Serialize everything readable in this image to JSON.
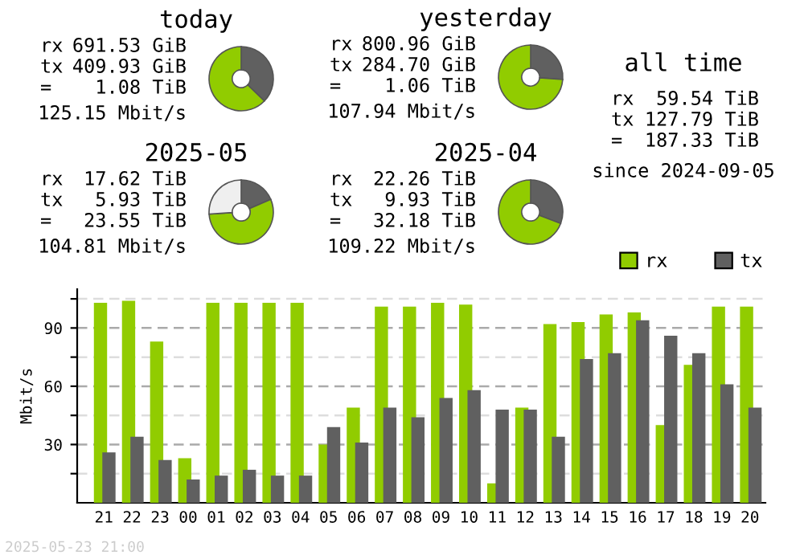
{
  "chart_data": [
    {
      "type": "donut",
      "title": "today",
      "categories": [
        null,
        null
      ],
      "values": [
        37.2,
        62.8
      ],
      "colors": [
        "#606060",
        "#91cc00"
      ],
      "annotations": [
        "rx",
        "691.53 GiB",
        "tx",
        "409.93 GiB",
        "=",
        "1.08 TiB",
        "125.15 Mbit/s"
      ]
    },
    {
      "type": "donut",
      "title": "yesterday",
      "categories": [
        null,
        null
      ],
      "values": [
        26.2,
        73.8
      ],
      "colors": [
        "#606060",
        "#91cc00"
      ],
      "annotations": [
        "rx",
        "800.96 GiB",
        "tx",
        "284.70 GiB",
        "=",
        "1.06 TiB",
        "107.94 Mbit/s"
      ]
    },
    {
      "type": "donut",
      "title": "2025-05",
      "categories": [
        null,
        null,
        null
      ],
      "values": [
        18.6,
        55.4,
        26.0
      ],
      "colors": [
        "#606060",
        "#91cc00",
        "#efefef"
      ],
      "annotations": [
        "rx",
        "17.62 TiB",
        "tx",
        "5.93 TiB",
        "=",
        "23.55 TiB",
        "104.81 Mbit/s"
      ]
    },
    {
      "type": "donut",
      "title": "2025-04",
      "categories": [
        null,
        null
      ],
      "values": [
        30.8,
        69.2
      ],
      "colors": [
        "#606060",
        "#91cc00"
      ],
      "annotations": [
        "rx",
        "22.26 TiB",
        "tx",
        "9.93 TiB",
        "=",
        "32.18 TiB",
        "109.22 Mbit/s"
      ]
    },
    {
      "type": "other",
      "title": "all time",
      "annotations": [
        "rx",
        "59.54 TiB",
        "tx",
        "127.79 TiB",
        "=",
        "187.33 TiB",
        "since 2024-09-05"
      ]
    },
    {
      "type": "bar",
      "ylabel": "Mbit/s",
      "categories": [
        "21",
        "22",
        "23",
        "00",
        "01",
        "02",
        "03",
        "04",
        "05",
        "06",
        "07",
        "08",
        "09",
        "10",
        "11",
        "12",
        "13",
        "14",
        "15",
        "16",
        "17",
        "18",
        "19",
        "20"
      ],
      "series": [
        {
          "name": "rx",
          "color": "#91cc00",
          "values": [
            103,
            104,
            83,
            23,
            103,
            103,
            103,
            103,
            30,
            49,
            101,
            101,
            103,
            102,
            10,
            49,
            92,
            93,
            97,
            98,
            40,
            71,
            101,
            101
          ]
        },
        {
          "name": "tx",
          "color": "#606060",
          "values": [
            26,
            34,
            22,
            12,
            14,
            17,
            14,
            14,
            39,
            31,
            49,
            44,
            54,
            58,
            48,
            48,
            34,
            74,
            77,
            94,
            86,
            77,
            61,
            49
          ]
        }
      ],
      "ylim": [
        0,
        110
      ],
      "yticks": [
        {
          "value": 15,
          "label": null
        },
        30,
        {
          "value": 45,
          "label": null
        },
        60,
        {
          "value": 75,
          "label": null
        },
        90,
        {
          "value": 105,
          "label": null
        }
      ],
      "grid": "y",
      "legend": "top right",
      "annotations": [
        "2025-05-23 21:00"
      ]
    }
  ]
}
